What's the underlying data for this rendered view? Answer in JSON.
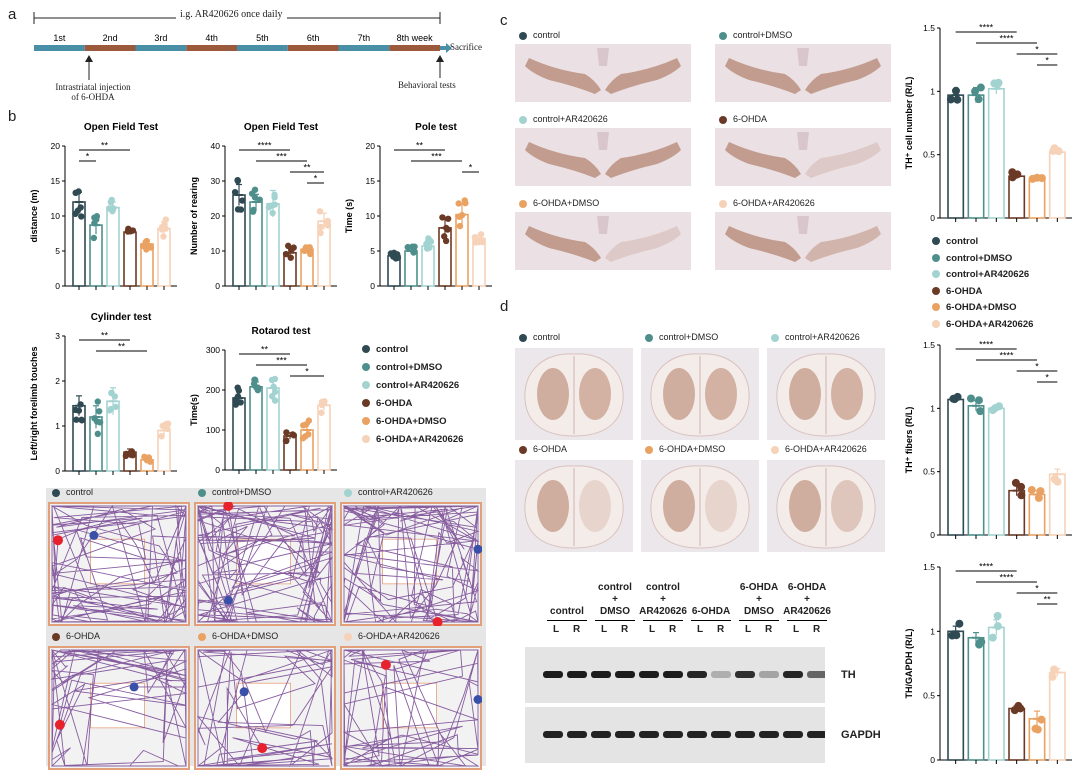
{
  "panel_labels": {
    "a": "a",
    "b": "b",
    "c": "c",
    "d": "d"
  },
  "timeline": {
    "treatment_label": "i.g. AR420626 once daily",
    "weeks": [
      "1st",
      "2nd",
      "3rd",
      "4th",
      "5th",
      "6th",
      "7th",
      "8th week"
    ],
    "end_label": "Sacrifice",
    "injection_label_line1": "Intrastriatal injection",
    "injection_label_line2": "of 6-OHDA",
    "behavior_label": "Behavioral tests"
  },
  "groups": [
    {
      "name": "control",
      "color": "#2f4a52"
    },
    {
      "name": "control+DMSO",
      "color": "#4e8f8c"
    },
    {
      "name": "control+AR420626",
      "color": "#a3d3d0"
    },
    {
      "name": "6-OHDA",
      "color": "#6b3a26"
    },
    {
      "name": "6-OHDA+DMSO",
      "color": "#e9a262"
    },
    {
      "name": "6-OHDA+AR420626",
      "color": "#f5d2b8"
    }
  ],
  "trace_colors": {
    "path": "#7b4c97",
    "start": "#e8222d",
    "end": "#3a4fa8",
    "arena_border": "#e2a07a"
  },
  "sig": {
    "s1": "*",
    "s2": "**",
    "s3": "***",
    "s4": "****"
  },
  "chart_data": [
    {
      "id": "open_field_distance",
      "type": "bar",
      "title": "Open Field Test",
      "ylabel": "distance (m)",
      "ylim": [
        0,
        20
      ],
      "yticks": [
        0,
        5,
        10,
        15,
        20
      ],
      "categories": [
        "control",
        "control+DMSO",
        "control+AR420626",
        "6-OHDA",
        "6-OHDA+DMSO",
        "6-OHDA+AR420626"
      ],
      "values": [
        12,
        8.7,
        11.2,
        7.7,
        6,
        8.2
      ],
      "errors": [
        1.4,
        1.3,
        0.8,
        0.3,
        0.5,
        1.0
      ],
      "significance": [
        {
          "from": 0,
          "to": 1,
          "label": "*"
        },
        {
          "from": 0,
          "to": 3,
          "label": "**"
        }
      ]
    },
    {
      "id": "open_field_rearing",
      "type": "bar",
      "title": "Open Field Test",
      "ylabel": "Number of rearing",
      "ylim": [
        0,
        40
      ],
      "yticks": [
        0,
        10,
        20,
        30,
        40
      ],
      "categories": [
        "control",
        "control+DMSO",
        "control+AR420626",
        "6-OHDA",
        "6-OHDA+DMSO",
        "6-OHDA+AR420626"
      ],
      "values": [
        26,
        24,
        23.5,
        9.5,
        10.5,
        18.5
      ],
      "errors": [
        3,
        2.2,
        3.8,
        1.5,
        1.2,
        2.3
      ],
      "significance": [
        {
          "from": 0,
          "to": 3,
          "label": "****"
        },
        {
          "from": 1,
          "to": 4,
          "label": "***"
        },
        {
          "from": 3,
          "to": 5,
          "label": "**"
        },
        {
          "from": 4,
          "to": 5,
          "label": "*"
        }
      ]
    },
    {
      "id": "pole_test",
      "type": "bar",
      "title": "Pole test",
      "ylabel": "Time (s)",
      "ylim": [
        0,
        20
      ],
      "yticks": [
        0,
        5,
        10,
        15,
        20
      ],
      "categories": [
        "control",
        "control+DMSO",
        "control+AR420626",
        "6-OHDA",
        "6-OHDA+DMSO",
        "6-OHDA+AR420626"
      ],
      "values": [
        4.3,
        5,
        5.7,
        8.3,
        10.2,
        6.8
      ],
      "errors": [
        0.4,
        0.4,
        0.8,
        1.5,
        1.5,
        0.5
      ],
      "significance": [
        {
          "from": 0,
          "to": 3,
          "label": "**"
        },
        {
          "from": 1,
          "to": 4,
          "label": "***"
        },
        {
          "from": 4,
          "to": 5,
          "label": "*"
        }
      ]
    },
    {
      "id": "cylinder_test",
      "type": "bar",
      "title": "Cylinder test",
      "ylabel": "Left/right forelimb touches",
      "ylim": [
        0,
        3
      ],
      "yticks": [
        0,
        1,
        2,
        3
      ],
      "categories": [
        "control",
        "control+DMSO",
        "control+AR420626",
        "6-OHDA",
        "6-OHDA+DMSO",
        "6-OHDA+AR420626"
      ],
      "values": [
        1.45,
        1.2,
        1.55,
        0.42,
        0.25,
        0.9
      ],
      "errors": [
        0.22,
        0.25,
        0.3,
        0.07,
        0.06,
        0.12
      ],
      "significance": [
        {
          "from": 0,
          "to": 3,
          "label": "**"
        },
        {
          "from": 1,
          "to": 4,
          "label": "**"
        }
      ]
    },
    {
      "id": "rotarod_test",
      "type": "bar",
      "title": "Rotarod test",
      "ylabel": "Time(s)",
      "ylim": [
        0,
        300
      ],
      "yticks": [
        0,
        100,
        200,
        300
      ],
      "categories": [
        "control",
        "control+DMSO",
        "control+AR420626",
        "6-OHDA",
        "6-OHDA+DMSO",
        "6-OHDA+AR420626"
      ],
      "values": [
        180,
        208,
        205,
        85,
        100,
        162
      ],
      "errors": [
        18,
        12,
        22,
        8,
        15,
        12
      ],
      "significance": [
        {
          "from": 0,
          "to": 3,
          "label": "**"
        },
        {
          "from": 1,
          "to": 4,
          "label": "***"
        },
        {
          "from": 3,
          "to": 5,
          "label": "*"
        }
      ]
    },
    {
      "id": "th_cell_number",
      "type": "bar",
      "ylabel": "TH⁺ cell number (R/L)",
      "ylim": [
        0,
        1.5
      ],
      "yticks": [
        0,
        0.5,
        1,
        1.5
      ],
      "categories": [
        "control",
        "control+DMSO",
        "control+AR420626",
        "6-OHDA",
        "6-OHDA+DMSO",
        "6-OHDA+AR420626"
      ],
      "values": [
        0.97,
        0.97,
        1.02,
        0.33,
        0.31,
        0.52
      ],
      "errors": [
        0.03,
        0.06,
        0.04,
        0.02,
        0.02,
        0.02
      ],
      "significance": [
        {
          "from": 0,
          "to": 3,
          "label": "****"
        },
        {
          "from": 1,
          "to": 4,
          "label": "****"
        },
        {
          "from": 3,
          "to": 5,
          "label": "*"
        },
        {
          "from": 4,
          "to": 5,
          "label": "*"
        }
      ]
    },
    {
      "id": "th_fibers",
      "type": "bar",
      "ylabel": "TH⁺ fibers (R/L)",
      "ylim": [
        0,
        1.5
      ],
      "yticks": [
        0,
        0.5,
        1,
        1.5
      ],
      "categories": [
        "control",
        "control+DMSO",
        "control+AR420626",
        "6-OHDA",
        "6-OHDA+DMSO",
        "6-OHDA+AR420626"
      ],
      "values": [
        1.07,
        1.02,
        1.0,
        0.35,
        0.32,
        0.48
      ],
      "errors": [
        0.02,
        0.04,
        0.01,
        0.04,
        0.03,
        0.04
      ],
      "significance": [
        {
          "from": 0,
          "to": 3,
          "label": "****"
        },
        {
          "from": 1,
          "to": 4,
          "label": "****"
        },
        {
          "from": 3,
          "to": 5,
          "label": "*"
        },
        {
          "from": 4,
          "to": 5,
          "label": "*"
        }
      ]
    },
    {
      "id": "th_gapdh",
      "type": "bar",
      "ylabel": "TH/GAPDH (R/L)",
      "ylim": [
        0,
        1.5
      ],
      "yticks": [
        0,
        0.5,
        1,
        1.5
      ],
      "categories": [
        "control",
        "control+DMSO",
        "control+AR420626",
        "6-OHDA",
        "6-OHDA+DMSO",
        "6-OHDA+AR420626"
      ],
      "values": [
        1.0,
        0.95,
        1.03,
        0.4,
        0.32,
        0.68
      ],
      "errors": [
        0.04,
        0.04,
        0.06,
        0.02,
        0.06,
        0.03
      ],
      "significance": [
        {
          "from": 0,
          "to": 3,
          "label": "****"
        },
        {
          "from": 1,
          "to": 4,
          "label": "****"
        },
        {
          "from": 3,
          "to": 5,
          "label": "*"
        },
        {
          "from": 4,
          "to": 5,
          "label": "**"
        }
      ]
    }
  ],
  "western": {
    "groups": [
      {
        "l1": "",
        "l2": "",
        "l3": "control"
      },
      {
        "l1": "control",
        "l2": "+",
        "l3": "DMSO"
      },
      {
        "l1": "control",
        "l2": "+",
        "l3": "AR420626"
      },
      {
        "l1": "",
        "l2": "",
        "l3": "6-OHDA"
      },
      {
        "l1": "6-OHDA",
        "l2": "+",
        "l3": "DMSO"
      },
      {
        "l1": "6-OHDA",
        "l2": "+",
        "l3": "AR420626"
      }
    ],
    "lane_l": "L",
    "lane_r": "R",
    "bands": [
      "TH",
      "GAPDH"
    ],
    "th_intensity": [
      0.95,
      0.95,
      0.95,
      0.95,
      0.95,
      0.95,
      0.9,
      0.25,
      0.85,
      0.3,
      0.9,
      0.6
    ]
  }
}
